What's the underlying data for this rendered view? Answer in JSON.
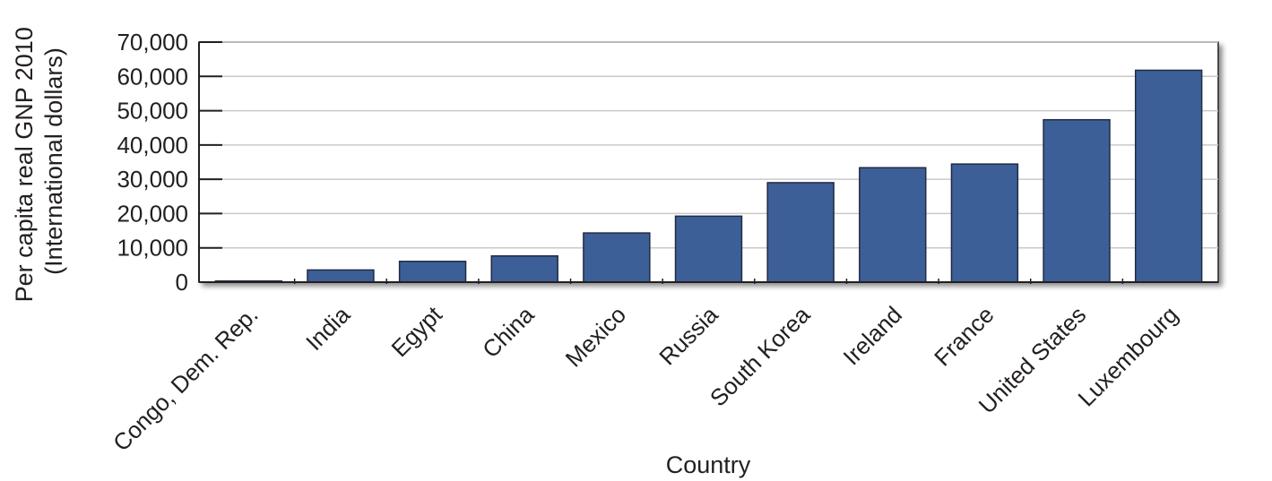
{
  "chart_data": {
    "type": "bar",
    "categories": [
      "Congo, Dem. Rep.",
      "India",
      "Egypt",
      "China",
      "Mexico",
      "Russia",
      "South Korea",
      "Ireland",
      "France",
      "United States",
      "Luxembourg"
    ],
    "values": [
      330,
      3550,
      6060,
      7640,
      14340,
      19240,
      29010,
      33370,
      34440,
      47360,
      61790
    ],
    "xlabel": "Country",
    "ylabel_lines": [
      "Per capita real GNP 2010",
      "(International dollars)"
    ],
    "ylim": [
      0,
      70000
    ],
    "yticks": [
      0,
      10000,
      20000,
      30000,
      40000,
      50000,
      60000,
      70000
    ],
    "ytick_labels": [
      "0",
      "10,000",
      "20,000",
      "30,000",
      "40,000",
      "50,000",
      "60,000",
      "70,000"
    ],
    "grid": true,
    "bar_color": "#3d5f97",
    "grid_color": "#c9c9c9"
  }
}
